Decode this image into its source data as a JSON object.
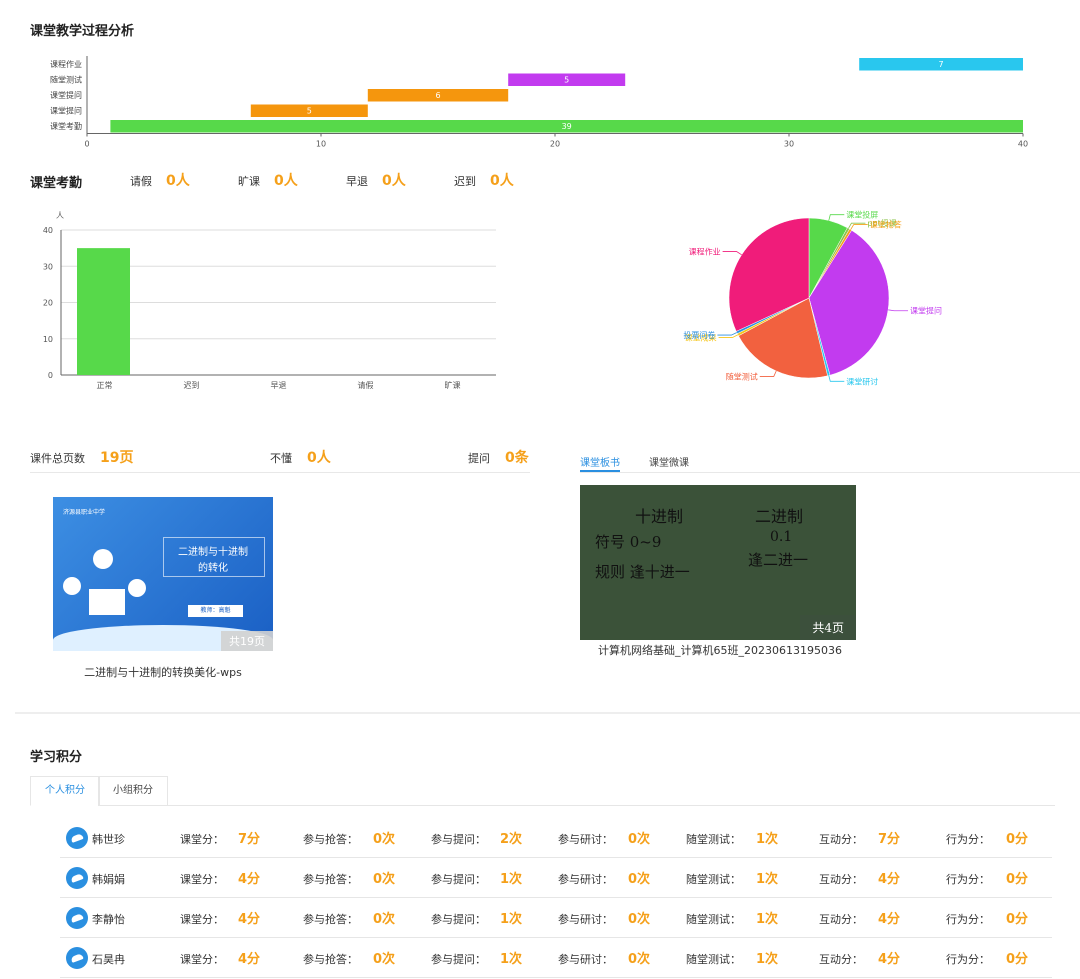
{
  "process": {
    "title": "课堂教学过程分析",
    "chart_data": {
      "type": "bar",
      "orientation": "horizontal",
      "categories": [
        "课程作业",
        "随堂测试",
        "课堂提问",
        "课堂提问",
        "课堂考勤"
      ],
      "bars": [
        {
          "category": "课程作业",
          "start": 33,
          "end": 40,
          "label": "7",
          "color": "#29c7ee"
        },
        {
          "category": "随堂测试",
          "start": 18,
          "end": 23,
          "label": "5",
          "color": "#c23bef"
        },
        {
          "category": "课堂提问",
          "start": 12,
          "end": 18,
          "label": "6",
          "color": "#f5960d"
        },
        {
          "category": "课堂提问",
          "start": 7,
          "end": 12,
          "label": "5",
          "color": "#f5960d"
        },
        {
          "category": "课堂考勤",
          "start": 1,
          "end": 40,
          "label": "39",
          "color": "#57d94a"
        }
      ],
      "xlim": [
        0,
        40
      ],
      "xticks": [
        0,
        10,
        20,
        30,
        40
      ]
    }
  },
  "attendance": {
    "title": "课堂考勤",
    "stats": [
      {
        "label": "请假",
        "value": "0人"
      },
      {
        "label": "旷课",
        "value": "0人"
      },
      {
        "label": "早退",
        "value": "0人"
      },
      {
        "label": "迟到",
        "value": "0人"
      }
    ],
    "chart_data": {
      "type": "bar",
      "ylabel": "人",
      "categories": [
        "正常",
        "迟到",
        "早退",
        "请假",
        "旷课"
      ],
      "values": [
        35,
        0,
        0,
        0,
        0
      ],
      "ylim": [
        0,
        40
      ],
      "yticks": [
        0,
        10,
        20,
        30,
        40
      ],
      "color": "#57d94a"
    }
  },
  "activity_pie": {
    "chart_data": {
      "type": "pie",
      "slices": [
        {
          "name": "课堂投屏",
          "value": 8,
          "color": "#57d94a"
        },
        {
          "name": "ppt授课",
          "value": 0.5,
          "color": "#8bc34a"
        },
        {
          "name": "课堂抢答",
          "value": 0.5,
          "color": "#f5a01a"
        },
        {
          "name": "课堂提问",
          "value": 37,
          "color": "#c23bef"
        },
        {
          "name": "课堂研讨",
          "value": 0.5,
          "color": "#29c7ee"
        },
        {
          "name": "随堂测试",
          "value": 21,
          "color": "#f2613f"
        },
        {
          "name": "课堂成果",
          "value": 0.5,
          "color": "#f5c518"
        },
        {
          "name": "投票问卷",
          "value": 0.5,
          "color": "#2a8fe0"
        },
        {
          "name": "课程作业",
          "value": 32,
          "color": "#f01c7a"
        }
      ]
    }
  },
  "courseware": {
    "total_label": "课件总页数",
    "total_value": "19页",
    "dont_understand_label": "不懂",
    "dont_understand_value": "0人",
    "question_label": "提问",
    "question_value": "0条",
    "item": {
      "school": "济源县职业中学",
      "slide_title_1": "二进制与十进制",
      "slide_title_2": "的转化",
      "teacher": "教师：高魁",
      "pages": "共19页",
      "name": "二进制与十进制的转换美化-wps"
    }
  },
  "board": {
    "tabs": [
      "课堂板书",
      "课堂微课"
    ],
    "active_tab": "课堂板书",
    "pages": "共4页",
    "name": "计算机网络基础_计算机65班_20230613195036",
    "handwriting": [
      "十进制",
      "二进制",
      "符号 0~9",
      "0.1",
      "规则 逢十进一",
      "逢二进一"
    ]
  },
  "scores": {
    "title": "学习积分",
    "tabs": [
      "个人积分",
      "小组积分"
    ],
    "active_tab": "个人积分",
    "labels": {
      "class": "课堂分：",
      "race": "参与抢答：",
      "question": "参与提问：",
      "discuss": "参与研讨：",
      "test": "随堂测试：",
      "interact": "互动分：",
      "behavior": "行为分："
    },
    "rows": [
      {
        "name": "韩世珍",
        "class": "7分",
        "race": "0次",
        "question": "2次",
        "discuss": "0次",
        "test": "1次",
        "interact": "7分",
        "behavior": "0分"
      },
      {
        "name": "韩娟娟",
        "class": "4分",
        "race": "0次",
        "question": "1次",
        "discuss": "0次",
        "test": "1次",
        "interact": "4分",
        "behavior": "0分"
      },
      {
        "name": "李静怡",
        "class": "4分",
        "race": "0次",
        "question": "1次",
        "discuss": "0次",
        "test": "1次",
        "interact": "4分",
        "behavior": "0分"
      },
      {
        "name": "石昊冉",
        "class": "4分",
        "race": "0次",
        "question": "1次",
        "discuss": "0次",
        "test": "1次",
        "interact": "4分",
        "behavior": "0分"
      }
    ]
  }
}
